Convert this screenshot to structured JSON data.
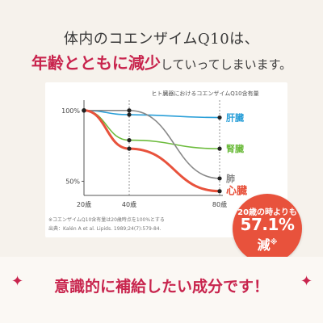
{
  "headline": {
    "line1": "体内のコエンザイムQ10は、",
    "emphasis": "年齢とともに減少",
    "rest": "していってしまいます。"
  },
  "chart_data": {
    "type": "line",
    "title": "ヒト臓器におけるコエンザイムQ10含有量",
    "x": [
      20,
      40,
      80
    ],
    "x_tick_labels": [
      "20歳",
      "40歳",
      "80歳"
    ],
    "y_ticks": [
      100,
      50
    ],
    "y_tick_labels": [
      "100%",
      "50%"
    ],
    "ylim": [
      40,
      105
    ],
    "series": [
      {
        "name": "肝臓",
        "color": "#2a9fd8",
        "values": [
          100,
          97,
          95
        ]
      },
      {
        "name": "腎臓",
        "color": "#6cbb3c",
        "values": [
          100,
          79,
          73
        ]
      },
      {
        "name": "肺",
        "color": "#888888",
        "values": [
          100,
          100,
          52
        ]
      },
      {
        "name": "心臓",
        "color": "#e8523c",
        "values": [
          100,
          73,
          43
        ]
      }
    ],
    "footnotes": [
      "※コエンザイムQ10含有量は20歳時点を100%とする",
      "出典：Kalén A et al. Lipids. 1989;24(7):579-84."
    ]
  },
  "callout": {
    "line1": "20歳の時よりも",
    "value": "57.1%",
    "line3": "減",
    "mark": "※"
  },
  "footer": {
    "text": "意識的に補給したい成分です！",
    "sparkle": "✦"
  }
}
